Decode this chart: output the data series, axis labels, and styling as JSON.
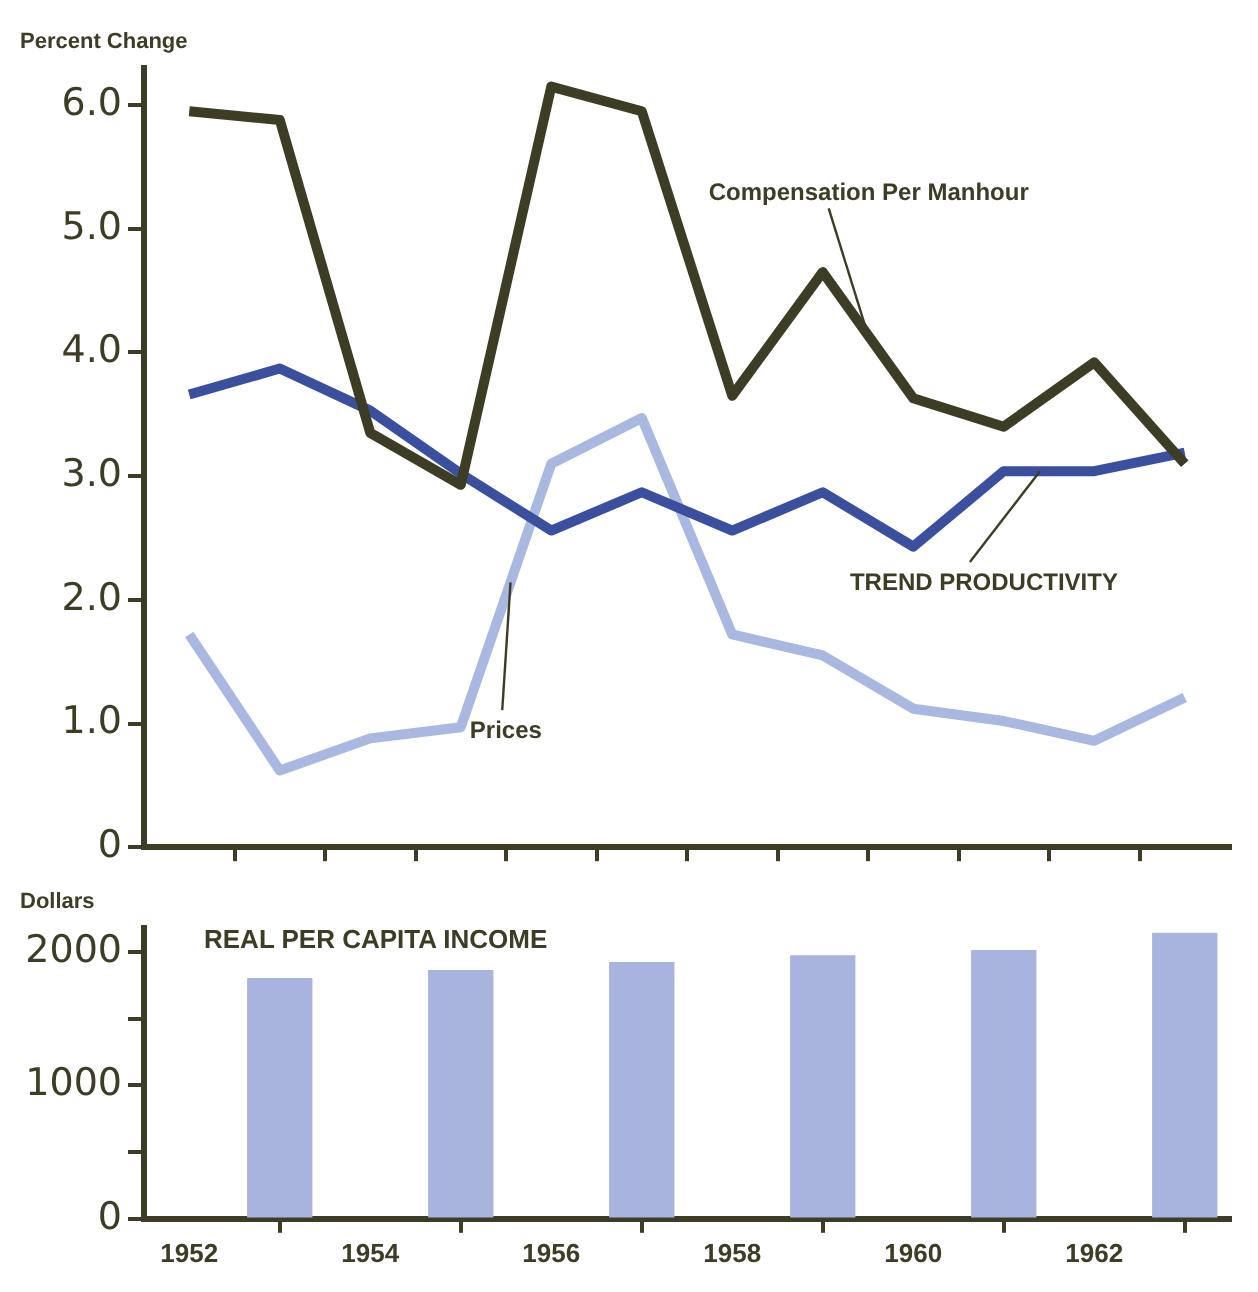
{
  "chart_data": [
    {
      "type": "line",
      "ylabel": "Percent Change",
      "x": [
        1952,
        1953,
        1954,
        1955,
        1956,
        1957,
        1958,
        1959,
        1960,
        1961,
        1962,
        1963
      ],
      "series": [
        {
          "name": "Compensation Per Manhour",
          "color": "#3d3d26",
          "values": [
            5.95,
            5.88,
            3.35,
            2.93,
            6.15,
            5.95,
            3.65,
            4.65,
            3.63,
            3.4,
            3.92,
            3.1
          ]
        },
        {
          "name": "TREND PRODUCTIVITY",
          "color": "#3a4f9e",
          "values": [
            3.66,
            3.87,
            3.53,
            3.02,
            2.56,
            2.87,
            2.56,
            2.87,
            2.43,
            3.04,
            3.04,
            3.19
          ]
        },
        {
          "name": "Prices",
          "color": "#a9b8e0",
          "values": [
            1.72,
            0.62,
            0.88,
            0.97,
            3.1,
            3.47,
            1.72,
            1.55,
            1.12,
            1.02,
            0.86,
            1.21
          ]
        }
      ],
      "xlim": [
        1951.5,
        1963.5
      ],
      "xticks": [
        {
          "value": 1952.5,
          "label": null
        },
        {
          "value": 1953.5,
          "label": null
        },
        {
          "value": 1954.5,
          "label": null
        },
        {
          "value": 1955.5,
          "label": null
        },
        {
          "value": 1956.5,
          "label": null
        },
        {
          "value": 1957.5,
          "label": null
        },
        {
          "value": 1958.5,
          "label": null
        },
        {
          "value": 1959.5,
          "label": null
        },
        {
          "value": 1960.5,
          "label": null
        },
        {
          "value": 1961.5,
          "label": null
        },
        {
          "value": 1962.5,
          "label": null
        }
      ],
      "ylim": [
        0,
        6.3
      ],
      "yticks": [
        0,
        {
          "value": 1,
          "label": "1.0"
        },
        {
          "value": 2,
          "label": "2.0"
        },
        {
          "value": 3,
          "label": "3.0"
        },
        {
          "value": 4,
          "label": "4.0"
        },
        {
          "value": 5,
          "label": "5.0"
        },
        {
          "value": 6,
          "label": "6.0"
        }
      ],
      "tick_labels": "y",
      "grid": false,
      "legend": false
    },
    {
      "type": "bar",
      "title": "REAL PER CAPITA INCOME",
      "ylabel": "Dollars",
      "x": [
        1953,
        1955,
        1957,
        1959,
        1961,
        1963
      ],
      "series": [
        {
          "color": "#a8b4de",
          "values": [
            1800,
            1860,
            1920,
            1970,
            2010,
            2140
          ]
        }
      ],
      "xlim": [
        1951.5,
        1963.5
      ],
      "xticks": [
        1952,
        1954,
        1956,
        1958,
        1960,
        1962
      ],
      "ylim": [
        0,
        2180
      ],
      "yticks": [
        0,
        {
          "value": 500,
          "label": null
        },
        1000,
        {
          "value": 1500,
          "label": null
        },
        2000
      ],
      "grid": false,
      "legend": false
    }
  ]
}
